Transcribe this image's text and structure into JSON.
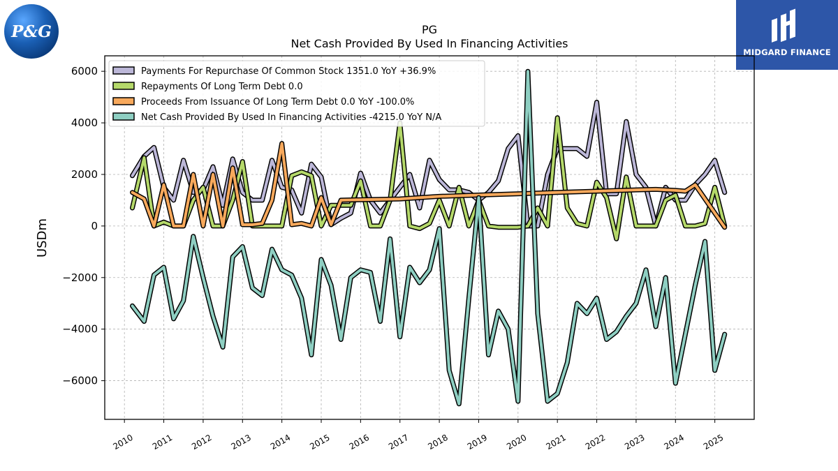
{
  "brand": {
    "left_logo_text": "P&G",
    "right_logo_text": "MIDGARD FINANCE",
    "colors": {
      "pg_blue": "#1a5fb4",
      "midgard_blue": "#2d56a8"
    }
  },
  "chart_data": {
    "type": "line",
    "title": "PG",
    "subtitle": "Net Cash Provided By Used In Financing Activities",
    "ylabel": "USDm",
    "xlabel": "",
    "ylim": [
      -7500,
      6600
    ],
    "xlim": [
      2009.5,
      2026.0
    ],
    "yticks": [
      -6000,
      -4000,
      -2000,
      0,
      2000,
      4000,
      6000
    ],
    "ytick_labels": [
      "−6000",
      "−4000",
      "−2000",
      "0",
      "2000",
      "4000",
      "6000"
    ],
    "xticks": [
      2010,
      2011,
      2012,
      2013,
      2014,
      2015,
      2016,
      2017,
      2018,
      2019,
      2020,
      2021,
      2022,
      2023,
      2024,
      2025
    ],
    "xtick_labels": [
      "2010",
      "2011",
      "2012",
      "2013",
      "2014",
      "2015",
      "2016",
      "2017",
      "2018",
      "2019",
      "2020",
      "2021",
      "2022",
      "2023",
      "2024",
      "2025"
    ],
    "grid": true,
    "legend_position": "top-left",
    "series": [
      {
        "name": "Payments For Repurchase Of Common Stock",
        "legend": "Payments For Repurchase Of Common Stock  1351.0 YoY +36.9%",
        "color": "#bcb7d8",
        "points": [
          [
            2010.2,
            1950
          ],
          [
            2010.5,
            2700
          ],
          [
            2010.75,
            3050
          ],
          [
            2011.0,
            1500
          ],
          [
            2011.25,
            1000
          ],
          [
            2011.5,
            2550
          ],
          [
            2011.75,
            1300
          ],
          [
            2012.0,
            1400
          ],
          [
            2012.25,
            2300
          ],
          [
            2012.5,
            800
          ],
          [
            2012.75,
            2600
          ],
          [
            2013.0,
            1300
          ],
          [
            2013.25,
            1000
          ],
          [
            2013.5,
            1000
          ],
          [
            2013.75,
            2550
          ],
          [
            2014.0,
            1500
          ],
          [
            2014.25,
            1400
          ],
          [
            2014.5,
            500
          ],
          [
            2014.75,
            2400
          ],
          [
            2015.0,
            1900
          ],
          [
            2015.25,
            50
          ],
          [
            2015.5,
            300
          ],
          [
            2015.75,
            500
          ],
          [
            2016.0,
            2050
          ],
          [
            2016.25,
            1000
          ],
          [
            2016.5,
            500
          ],
          [
            2016.75,
            1000
          ],
          [
            2017.0,
            1500
          ],
          [
            2017.25,
            2000
          ],
          [
            2017.5,
            700
          ],
          [
            2017.75,
            2550
          ],
          [
            2018.0,
            1800
          ],
          [
            2018.25,
            1400
          ],
          [
            2018.5,
            1400
          ],
          [
            2018.75,
            1300
          ],
          [
            2019.0,
            1000
          ],
          [
            2019.25,
            1300
          ],
          [
            2019.5,
            1750
          ],
          [
            2019.75,
            3000
          ],
          [
            2020.0,
            3500
          ],
          [
            2020.25,
            0
          ],
          [
            2020.5,
            0
          ],
          [
            2020.75,
            2000
          ],
          [
            2021.0,
            3000
          ],
          [
            2021.25,
            3000
          ],
          [
            2021.5,
            3000
          ],
          [
            2021.75,
            2700
          ],
          [
            2022.0,
            4800
          ],
          [
            2022.25,
            1250
          ],
          [
            2022.5,
            1250
          ],
          [
            2022.75,
            4050
          ],
          [
            2023.0,
            2000
          ],
          [
            2023.25,
            1500
          ],
          [
            2023.5,
            0
          ],
          [
            2023.75,
            1500
          ],
          [
            2024.0,
            1000
          ],
          [
            2024.25,
            1000
          ],
          [
            2024.5,
            1600
          ],
          [
            2024.75,
            2000
          ],
          [
            2025.0,
            2550
          ],
          [
            2025.25,
            1300
          ]
        ]
      },
      {
        "name": "Repayments Of Long Term Debt",
        "legend": "Repayments Of Long Term Debt  0.0",
        "color": "#b5d96a",
        "points": [
          [
            2010.2,
            700
          ],
          [
            2010.5,
            2650
          ],
          [
            2010.75,
            0
          ],
          [
            2011.0,
            150
          ],
          [
            2011.25,
            0
          ],
          [
            2011.5,
            0
          ],
          [
            2011.75,
            1000
          ],
          [
            2012.0,
            1500
          ],
          [
            2012.25,
            0
          ],
          [
            2012.5,
            0
          ],
          [
            2012.75,
            1000
          ],
          [
            2013.0,
            2500
          ],
          [
            2013.25,
            0
          ],
          [
            2013.5,
            0
          ],
          [
            2013.75,
            0
          ],
          [
            2014.0,
            0
          ],
          [
            2014.25,
            1950
          ],
          [
            2014.5,
            2100
          ],
          [
            2014.75,
            1950
          ],
          [
            2015.0,
            0
          ],
          [
            2015.25,
            800
          ],
          [
            2015.5,
            800
          ],
          [
            2015.75,
            800
          ],
          [
            2016.0,
            1750
          ],
          [
            2016.25,
            0
          ],
          [
            2016.5,
            0
          ],
          [
            2016.75,
            1000
          ],
          [
            2017.0,
            4000
          ],
          [
            2017.25,
            0
          ],
          [
            2017.5,
            -100
          ],
          [
            2017.75,
            100
          ],
          [
            2018.0,
            1000
          ],
          [
            2018.25,
            0
          ],
          [
            2018.5,
            1500
          ],
          [
            2018.75,
            0
          ],
          [
            2019.0,
            1000
          ],
          [
            2019.25,
            0
          ],
          [
            2019.5,
            -50
          ],
          [
            2019.75,
            -50
          ],
          [
            2020.0,
            -50
          ],
          [
            2020.25,
            0
          ],
          [
            2020.5,
            700
          ],
          [
            2020.75,
            0
          ],
          [
            2021.0,
            4200
          ],
          [
            2021.25,
            700
          ],
          [
            2021.5,
            100
          ],
          [
            2021.75,
            0
          ],
          [
            2022.0,
            1700
          ],
          [
            2022.25,
            1100
          ],
          [
            2022.5,
            -500
          ],
          [
            2022.75,
            1900
          ],
          [
            2023.0,
            0
          ],
          [
            2023.25,
            0
          ],
          [
            2023.5,
            0
          ],
          [
            2023.75,
            1000
          ],
          [
            2024.0,
            1200
          ],
          [
            2024.25,
            0
          ],
          [
            2024.5,
            0
          ],
          [
            2024.75,
            100
          ],
          [
            2025.0,
            1500
          ],
          [
            2025.25,
            0
          ]
        ]
      },
      {
        "name": "Proceeds From Issuance Of Long Term Debt",
        "legend": "Proceeds From Issuance Of Long Term Debt  0.0 YoY -100.0%",
        "color": "#f8a95c",
        "points": [
          [
            2010.2,
            1300
          ],
          [
            2010.5,
            1050
          ],
          [
            2010.75,
            0
          ],
          [
            2011.0,
            1600
          ],
          [
            2011.25,
            0
          ],
          [
            2011.5,
            0
          ],
          [
            2011.75,
            2000
          ],
          [
            2012.0,
            0
          ],
          [
            2012.25,
            2000
          ],
          [
            2012.5,
            0
          ],
          [
            2012.75,
            2250
          ],
          [
            2013.0,
            50
          ],
          [
            2013.25,
            50
          ],
          [
            2013.5,
            100
          ],
          [
            2013.75,
            1000
          ],
          [
            2014.0,
            3200
          ],
          [
            2014.25,
            50
          ],
          [
            2014.5,
            100
          ],
          [
            2014.75,
            0
          ],
          [
            2015.0,
            1100
          ],
          [
            2015.25,
            50
          ],
          [
            2015.5,
            1000
          ],
          [
            2016.0,
            1020
          ],
          [
            2017.0,
            1050
          ],
          [
            2018.0,
            1150
          ],
          [
            2019.0,
            1200
          ],
          [
            2020.0,
            1250
          ],
          [
            2021.0,
            1300
          ],
          [
            2022.0,
            1350
          ],
          [
            2023.0,
            1400
          ],
          [
            2023.5,
            1420
          ],
          [
            2024.0,
            1380
          ],
          [
            2024.25,
            1350
          ],
          [
            2024.5,
            1600
          ],
          [
            2025.25,
            -50
          ]
        ]
      },
      {
        "name": "Net Cash Provided By Used In Financing Activities",
        "legend": "Net Cash Provided By Used In Financing Activities  -4215.0 YoY N/A",
        "color": "#8ecfc2",
        "points": [
          [
            2010.2,
            -3100
          ],
          [
            2010.5,
            -3700
          ],
          [
            2010.75,
            -1900
          ],
          [
            2011.0,
            -1600
          ],
          [
            2011.25,
            -3600
          ],
          [
            2011.5,
            -2900
          ],
          [
            2011.75,
            -400
          ],
          [
            2012.0,
            -2000
          ],
          [
            2012.25,
            -3500
          ],
          [
            2012.5,
            -4700
          ],
          [
            2012.75,
            -1200
          ],
          [
            2013.0,
            -800
          ],
          [
            2013.25,
            -2400
          ],
          [
            2013.5,
            -2700
          ],
          [
            2013.75,
            -900
          ],
          [
            2014.0,
            -1700
          ],
          [
            2014.25,
            -1900
          ],
          [
            2014.5,
            -2800
          ],
          [
            2014.75,
            -5000
          ],
          [
            2015.0,
            -1300
          ],
          [
            2015.25,
            -2300
          ],
          [
            2015.5,
            -4400
          ],
          [
            2015.75,
            -2000
          ],
          [
            2016.0,
            -1700
          ],
          [
            2016.25,
            -1800
          ],
          [
            2016.5,
            -3700
          ],
          [
            2016.75,
            -500
          ],
          [
            2017.0,
            -4300
          ],
          [
            2017.25,
            -1600
          ],
          [
            2017.5,
            -2200
          ],
          [
            2017.75,
            -1700
          ],
          [
            2018.0,
            -100
          ],
          [
            2018.25,
            -5600
          ],
          [
            2018.5,
            -6900
          ],
          [
            2018.75,
            -2800
          ],
          [
            2019.0,
            1100
          ],
          [
            2019.25,
            -5000
          ],
          [
            2019.5,
            -3300
          ],
          [
            2019.75,
            -4000
          ],
          [
            2020.0,
            -6800
          ],
          [
            2020.25,
            6000
          ],
          [
            2020.5,
            -3400
          ],
          [
            2020.75,
            -6800
          ],
          [
            2021.0,
            -6500
          ],
          [
            2021.25,
            -5300
          ],
          [
            2021.5,
            -3000
          ],
          [
            2021.75,
            -3400
          ],
          [
            2022.0,
            -2800
          ],
          [
            2022.25,
            -4400
          ],
          [
            2022.5,
            -4100
          ],
          [
            2022.75,
            -3500
          ],
          [
            2023.0,
            -3000
          ],
          [
            2023.25,
            -1700
          ],
          [
            2023.5,
            -3900
          ],
          [
            2023.75,
            -2000
          ],
          [
            2024.0,
            -6100
          ],
          [
            2024.25,
            -4200
          ],
          [
            2024.5,
            -2300
          ],
          [
            2024.75,
            -600
          ],
          [
            2025.0,
            -5600
          ],
          [
            2025.25,
            -4200
          ]
        ]
      }
    ]
  }
}
